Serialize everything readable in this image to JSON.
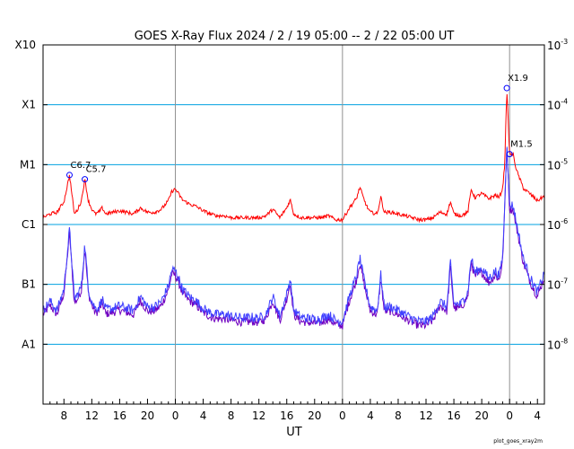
{
  "chart_data": {
    "type": "line",
    "title": "GOES X-Ray Flux   2024  /  2  /  19   05:00 --   2  /  22   05:00   UT",
    "xlabel": "UT",
    "y_scale": "log",
    "ylim": [
      1e-09,
      0.001
    ],
    "x_range_hours": [
      0,
      72
    ],
    "left_axis_labels": [
      {
        "label": "X10",
        "flux": 0.001
      },
      {
        "label": "X1",
        "flux": 0.0001
      },
      {
        "label": "M1",
        "flux": 1e-05
      },
      {
        "label": "C1",
        "flux": 1e-06
      },
      {
        "label": "B1",
        "flux": 1e-07
      },
      {
        "label": "A1",
        "flux": 1e-08
      }
    ],
    "right_axis_labels": [
      {
        "base": "10",
        "exp": "-3",
        "flux": 0.001
      },
      {
        "base": "10",
        "exp": "-4",
        "flux": 0.0001
      },
      {
        "base": "10",
        "exp": "-5",
        "flux": 1e-05
      },
      {
        "base": "10",
        "exp": "-6",
        "flux": 1e-06
      },
      {
        "base": "10",
        "exp": "-7",
        "flux": 1e-07
      },
      {
        "base": "10",
        "exp": "-8",
        "flux": 1e-08
      }
    ],
    "x_ticks": [
      {
        "label": "8",
        "hour": 3
      },
      {
        "label": "12",
        "hour": 7
      },
      {
        "label": "16",
        "hour": 11
      },
      {
        "label": "20",
        "hour": 15
      },
      {
        "label": "0",
        "hour": 19
      },
      {
        "label": "4",
        "hour": 23
      },
      {
        "label": "8",
        "hour": 27
      },
      {
        "label": "12",
        "hour": 31
      },
      {
        "label": "16",
        "hour": 35
      },
      {
        "label": "20",
        "hour": 39
      },
      {
        "label": "0",
        "hour": 43
      },
      {
        "label": "4",
        "hour": 47
      },
      {
        "label": "8",
        "hour": 51
      },
      {
        "label": "12",
        "hour": 55
      },
      {
        "label": "16",
        "hour": 59
      },
      {
        "label": "20",
        "hour": 63
      },
      {
        "label": "0",
        "hour": 67
      },
      {
        "label": "4",
        "hour": 71
      }
    ],
    "day_boundaries_hours": [
      19,
      43,
      67
    ],
    "grid_flux_levels": [
      0.0001,
      1e-05,
      1e-06,
      1e-07,
      1e-08
    ],
    "colors": {
      "long_channel": "#ff0000",
      "short_channel": "#4040ff",
      "short_channel_low": "#7000c0",
      "grid": "#00a0e0",
      "day_line": "#909090",
      "marker": "#0000ff"
    },
    "series": [
      {
        "x": [
          0,
          1,
          2,
          3,
          3.8,
          4.5,
          5,
          5.5,
          6,
          6.5,
          7,
          7.5,
          8,
          8.5,
          9,
          10,
          11,
          12,
          13,
          14,
          15,
          16,
          17,
          18,
          18.5,
          19,
          19.5,
          20,
          21,
          22,
          23,
          24,
          25,
          26,
          27,
          28,
          29,
          30,
          31,
          32,
          33,
          34,
          35,
          35.5,
          36,
          37,
          38,
          39,
          40,
          41,
          42,
          43,
          44,
          45,
          45.5,
          46,
          46.5,
          47,
          48,
          48.5,
          49,
          50,
          51,
          52,
          53,
          54,
          55,
          56,
          57,
          58,
          58.5,
          59,
          60,
          61,
          61.5,
          62,
          63,
          64,
          65,
          65.5,
          66,
          66.3,
          66.6,
          67,
          67.5,
          68,
          69,
          70,
          71,
          72
        ],
        "values": [
          1.3e-06,
          1.5e-06,
          1.6e-06,
          2.4e-06,
          6.7e-06,
          1.5e-06,
          1.8e-06,
          2.5e-06,
          5.7e-06,
          2.5e-06,
          1.8e-06,
          1.5e-06,
          1.6e-06,
          1.9e-06,
          1.5e-06,
          1.6e-06,
          1.7e-06,
          1.6e-06,
          1.5e-06,
          1.9e-06,
          1.6e-06,
          1.6e-06,
          1.8e-06,
          2.5e-06,
          3.6e-06,
          3.9e-06,
          3.2e-06,
          2.6e-06,
          2.2e-06,
          2e-06,
          1.7e-06,
          1.5e-06,
          1.4e-06,
          1.4e-06,
          1.3e-06,
          1.3e-06,
          1.3e-06,
          1.3e-06,
          1.3e-06,
          1.4e-06,
          1.8e-06,
          1.3e-06,
          1.9e-06,
          2.6e-06,
          1.5e-06,
          1.3e-06,
          1.3e-06,
          1.3e-06,
          1.3e-06,
          1.4e-06,
          1.2e-06,
          1.2e-06,
          1.9e-06,
          2.7e-06,
          4.2e-06,
          2.8e-06,
          2e-06,
          1.6e-06,
          1.5e-06,
          2.9e-06,
          1.6e-06,
          1.6e-06,
          1.5e-06,
          1.4e-06,
          1.3e-06,
          1.2e-06,
          1.2e-06,
          1.3e-06,
          1.6e-06,
          1.5e-06,
          2.4e-06,
          1.5e-06,
          1.4e-06,
          1.6e-06,
          3.9e-06,
          2.8e-06,
          3.3e-06,
          2.7e-06,
          3.1e-06,
          2.8e-06,
          4e-06,
          1e-05,
          0.00019,
          1.5e-05,
          1.5e-05,
          8e-06,
          4e-06,
          3.2e-06,
          2.5e-06,
          3e-06
        ]
      },
      {
        "x": [
          0,
          1,
          2,
          3,
          3.8,
          4.5,
          5,
          5.5,
          6,
          6.5,
          7,
          7.5,
          8,
          8.5,
          9,
          10,
          11,
          12,
          13,
          14,
          15,
          16,
          17,
          18,
          18.5,
          19,
          19.5,
          20,
          21,
          22,
          23,
          24,
          25,
          26,
          27,
          28,
          29,
          30,
          31,
          32,
          33,
          34,
          35,
          35.5,
          36,
          37,
          38,
          39,
          40,
          41,
          42,
          43,
          44,
          45,
          45.5,
          46,
          46.5,
          47,
          48,
          48.5,
          49,
          50,
          51,
          52,
          53,
          54,
          55,
          56,
          57,
          58,
          58.5,
          59,
          60,
          61,
          61.5,
          62,
          63,
          64,
          65,
          65.5,
          66,
          66.3,
          66.6,
          67,
          67.5,
          68,
          69,
          70,
          71,
          72
        ],
        "values": [
          3.5e-08,
          5e-08,
          3.5e-08,
          8e-08,
          8e-07,
          5.5e-08,
          6.5e-08,
          9e-08,
          4.5e-07,
          8e-08,
          5e-08,
          3.8e-08,
          4e-08,
          5.5e-08,
          3.6e-08,
          3.8e-08,
          4.2e-08,
          3.8e-08,
          3.5e-08,
          6e-08,
          4e-08,
          4e-08,
          5e-08,
          9e-08,
          1.7e-07,
          1.6e-07,
          1.2e-07,
          8e-08,
          6e-08,
          5e-08,
          3.8e-08,
          3.2e-08,
          3e-08,
          3e-08,
          2.8e-08,
          2.7e-08,
          2.6e-08,
          2.7e-08,
          2.6e-08,
          3e-08,
          6e-08,
          2.8e-08,
          6.5e-08,
          1.2e-07,
          3.5e-08,
          2.7e-08,
          2.6e-08,
          2.5e-08,
          2.6e-08,
          3e-08,
          2.4e-08,
          2.3e-08,
          6e-08,
          1.3e-07,
          2.6e-07,
          1.3e-07,
          7e-08,
          4e-08,
          3.5e-08,
          1.4e-07,
          4e-08,
          4e-08,
          3.5e-08,
          3e-08,
          2.6e-08,
          2.3e-08,
          2.3e-08,
          2.8e-08,
          5e-08,
          4e-08,
          2.2e-07,
          4.5e-08,
          4.5e-08,
          7e-08,
          2.7e-07,
          1.5e-07,
          1.8e-07,
          1.2e-07,
          1.6e-07,
          1.3e-07,
          2.8e-07,
          2e-06,
          2.5e-05,
          2e-06,
          2e-06,
          1e-06,
          2.5e-07,
          1.2e-07,
          7e-08,
          1.5e-07
        ]
      }
    ],
    "annotations": [
      {
        "label": "C6.7",
        "hour": 3.8,
        "flux": 6.7e-06
      },
      {
        "label": "C5.7",
        "hour": 6.0,
        "flux": 5.7e-06
      },
      {
        "label": "X1.9",
        "hour": 66.6,
        "flux": 0.00019
      },
      {
        "label": "M1.5",
        "hour": 67.0,
        "flux": 1.5e-05
      }
    ],
    "credit": "plot_goes_xray2m"
  }
}
